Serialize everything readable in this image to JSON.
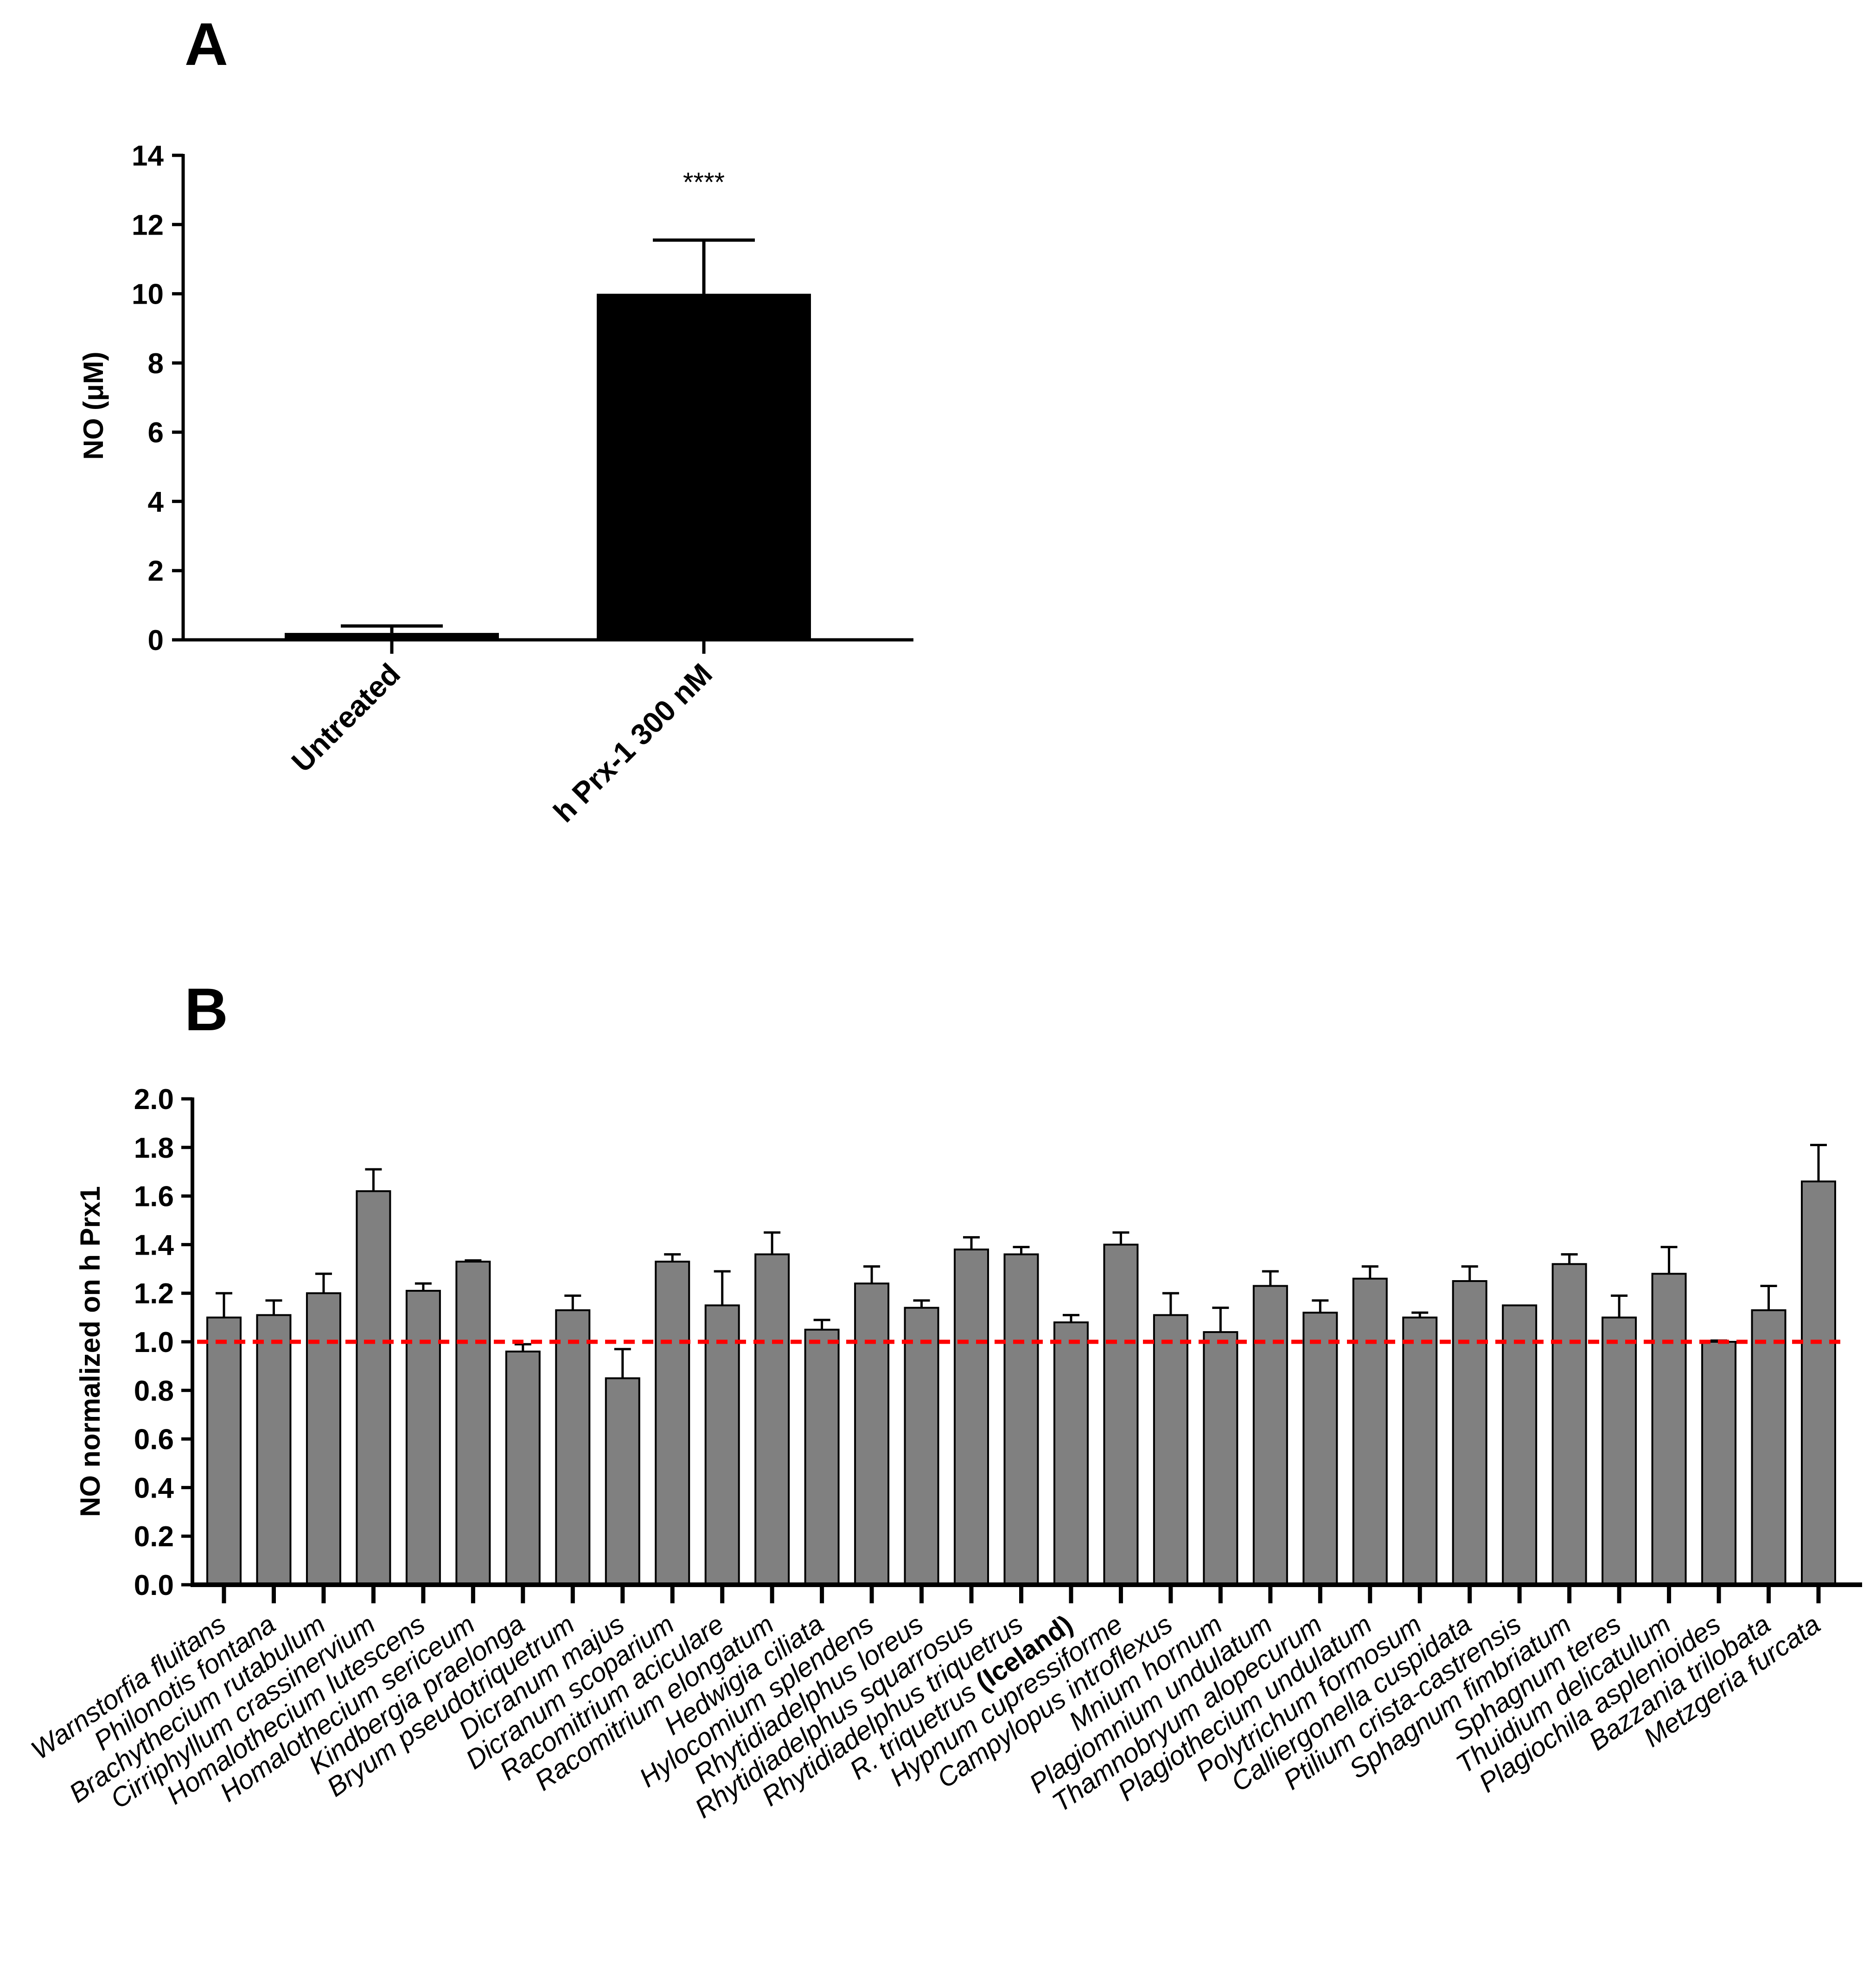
{
  "chart_data": [
    {
      "panel": "A",
      "type": "bar",
      "title": "",
      "xlabel": "",
      "ylabel": "NO (μM)",
      "ylim": [
        0,
        14
      ],
      "yticks": [
        "0",
        "2",
        "4",
        "6",
        "8",
        "10",
        "12",
        "14"
      ],
      "categories": [
        "Untreated",
        "h Prx-1 300 nM"
      ],
      "values": [
        0.2,
        10.0
      ],
      "errors": [
        0.2,
        1.55
      ],
      "annotations": [
        "",
        "****"
      ],
      "bar_color": "#000000"
    },
    {
      "panel": "B",
      "type": "bar",
      "title": "",
      "xlabel": "",
      "ylabel": "NO normalized on h Prx1",
      "ylim": [
        0,
        2.0
      ],
      "yticks": [
        "0.0",
        "0.2",
        "0.4",
        "0.6",
        "0.8",
        "1.0",
        "1.2",
        "1.4",
        "1.6",
        "1.8",
        "2.0"
      ],
      "reference_line": 1.0,
      "reference_color": "#ff0000",
      "bar_color": "#808080",
      "categories": [
        "Warnstorfia fluitans",
        "Philonotis fontana",
        "Brachythecium rutabulum",
        "Cirriphyllum crassinervium",
        "Homalothecium lutescens",
        "Homalothecium sericeum",
        "Kindbergia praelonga",
        "Bryum pseudotriquetrum",
        "Dicranum majus",
        "Dicranum scoparium",
        "Racomitrium aciculare",
        "Racomitrium elongatum",
        "Hedwigia ciliata",
        "Hylocomium splendens",
        "Rhytidiadelphus loreus",
        "Rhytidiadelphus squarrosus",
        "Rhytidiadelphus triquetrus",
        "R. triquetrus (Iceland)",
        "Hypnum cupressiforme",
        "Campylopus introflexus",
        "Mnium hornum",
        "Plagiomnium undulatum",
        "Thamnobryum alopecurum",
        "Plagiothecium undulatum",
        "Polytrichum formosum",
        "Calliergonella cuspidata",
        "Ptilium crista-castrensis",
        "Sphagnum fimbriatum",
        "Sphagnum teres",
        "Thuidium delicatulum",
        "Plagiochila asplenioides",
        "Bazzania trilobata",
        "Metzgeria furcata"
      ],
      "values": [
        1.1,
        1.11,
        1.2,
        1.62,
        1.21,
        1.33,
        0.96,
        1.13,
        0.85,
        1.33,
        1.15,
        1.36,
        1.05,
        1.24,
        1.14,
        1.38,
        1.36,
        1.08,
        1.4,
        1.11,
        1.04,
        1.23,
        1.12,
        1.26,
        1.1,
        1.25,
        1.15,
        1.32,
        1.1,
        1.28,
        1.0,
        1.13,
        1.66
      ],
      "errors": [
        0.1,
        0.06,
        0.08,
        0.09,
        0.03,
        0.005,
        0.03,
        0.06,
        0.12,
        0.03,
        0.14,
        0.09,
        0.04,
        0.07,
        0.03,
        0.05,
        0.03,
        0.03,
        0.05,
        0.09,
        0.1,
        0.06,
        0.05,
        0.05,
        0.02,
        0.06,
        0.0,
        0.04,
        0.09,
        0.11,
        0.005,
        0.1,
        0.15
      ]
    }
  ],
  "panels": {
    "a_letter": "A",
    "b_letter": "B",
    "iceland_prefix": "R. triquetrus ",
    "iceland_bold": "(Iceland)"
  }
}
